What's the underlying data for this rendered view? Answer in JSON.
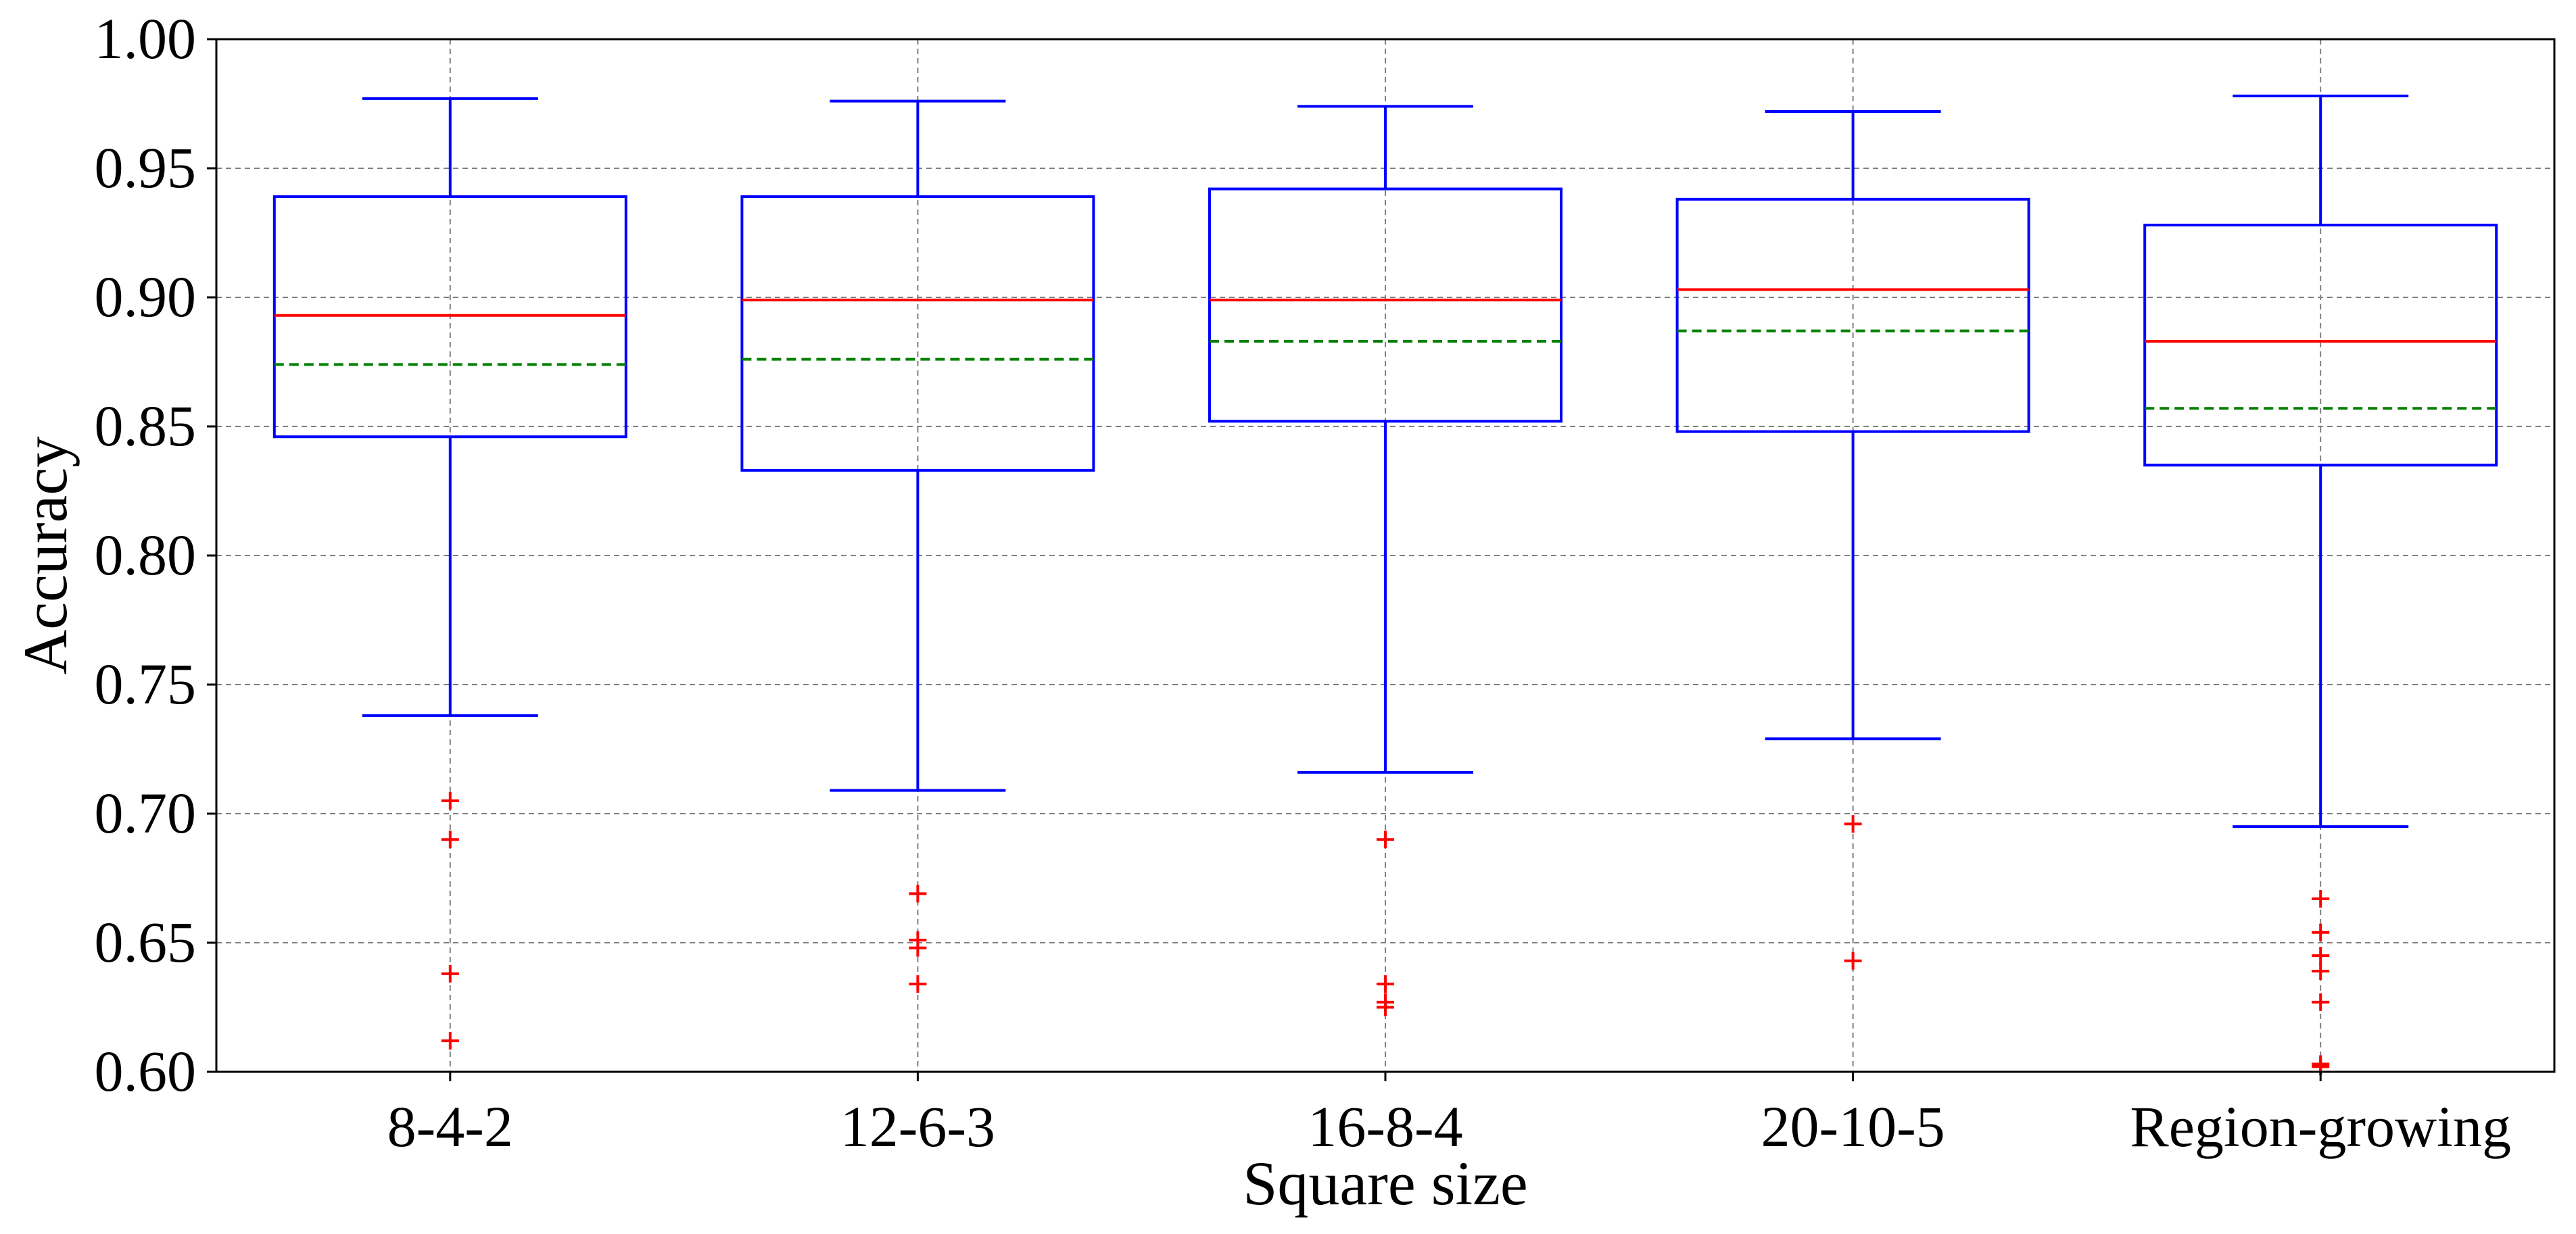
{
  "chart_data": {
    "type": "box",
    "xlabel": "Square size",
    "ylabel": "Accuracy",
    "ylim": [
      0.6,
      1.0
    ],
    "yticks": [
      "0.60",
      "0.65",
      "0.70",
      "0.75",
      "0.80",
      "0.85",
      "0.90",
      "0.95",
      "1.00"
    ],
    "grid": true,
    "categories": [
      "8-4-2",
      "12-6-3",
      "16-8-4",
      "20-10-5",
      "Region-growing"
    ],
    "boxes": [
      {
        "category": "8-4-2",
        "whisker_low": 0.738,
        "q1": 0.846,
        "median": 0.893,
        "mean": 0.874,
        "q3": 0.939,
        "whisker_high": 0.977,
        "outliers": [
          0.705,
          0.69,
          0.638,
          0.612
        ]
      },
      {
        "category": "12-6-3",
        "whisker_low": 0.709,
        "q1": 0.833,
        "median": 0.899,
        "mean": 0.876,
        "q3": 0.939,
        "whisker_high": 0.976,
        "outliers": [
          0.669,
          0.651,
          0.648,
          0.634
        ]
      },
      {
        "category": "16-8-4",
        "whisker_low": 0.716,
        "q1": 0.852,
        "median": 0.899,
        "mean": 0.883,
        "q3": 0.942,
        "whisker_high": 0.974,
        "outliers": [
          0.69,
          0.634,
          0.627,
          0.625
        ]
      },
      {
        "category": "20-10-5",
        "whisker_low": 0.729,
        "q1": 0.848,
        "median": 0.903,
        "mean": 0.887,
        "q3": 0.938,
        "whisker_high": 0.972,
        "outliers": [
          0.696,
          0.643
        ]
      },
      {
        "category": "Region-growing",
        "whisker_low": 0.695,
        "q1": 0.835,
        "median": 0.883,
        "mean": 0.857,
        "q3": 0.928,
        "whisker_high": 0.978,
        "outliers": [
          0.667,
          0.654,
          0.645,
          0.639,
          0.627,
          0.603,
          0.602
        ]
      }
    ],
    "colors": {
      "box": "#0000ff",
      "median": "#ff0000",
      "mean": "#008000",
      "outlier": "#ff0000",
      "grid": "#808080",
      "axes": "#000000"
    }
  }
}
